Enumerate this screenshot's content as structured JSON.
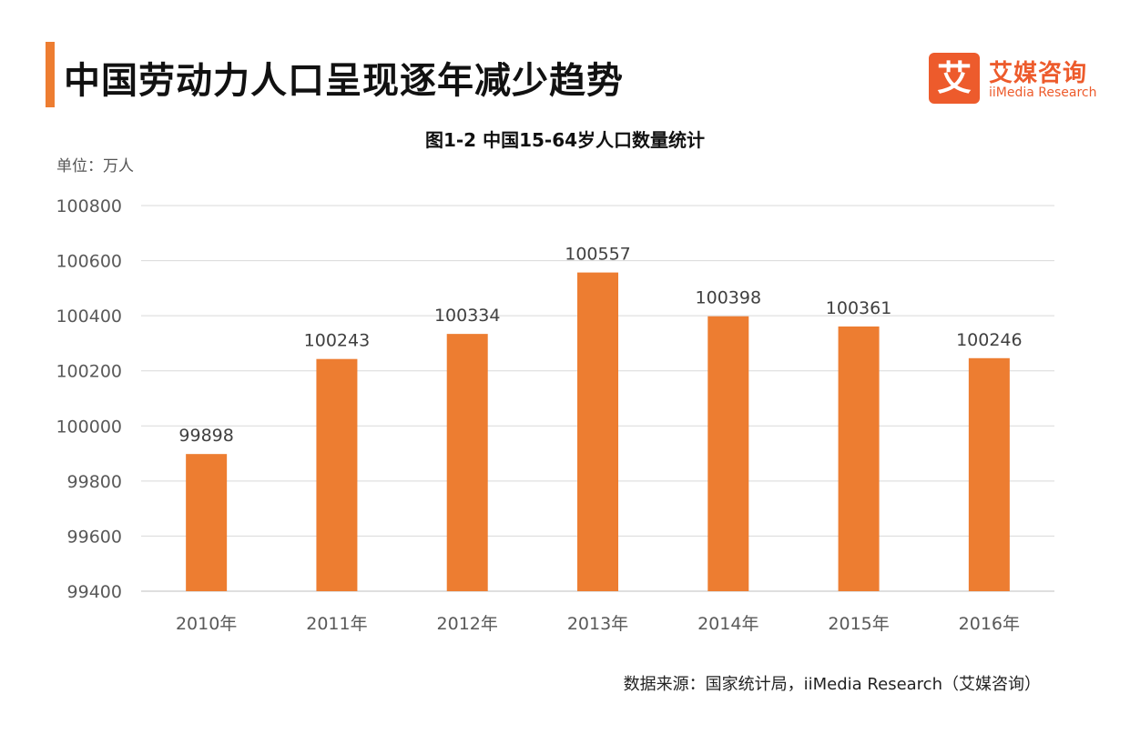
{
  "header": {
    "title": "中国劳动力人口呈现逐年减少趋势",
    "accent_color": "#ED7D31"
  },
  "logo": {
    "mark": "艾",
    "name_cn": "艾媒咨询",
    "name_en": "iiMedia Research",
    "color": "#ED5B2C"
  },
  "chart_title": "图1-2 中国15-64岁人口数量统计",
  "unit_label": "单位：万人",
  "source": "数据来源：国家统计局，iiMedia Research（艾媒咨询）",
  "chart_data": {
    "type": "bar",
    "title": "图1-2 中国15-64岁人口数量统计",
    "xlabel": "",
    "ylabel": "单位：万人",
    "categories": [
      "2010年",
      "2011年",
      "2012年",
      "2013年",
      "2014年",
      "2015年",
      "2016年"
    ],
    "values": [
      99898,
      100243,
      100334,
      100557,
      100398,
      100361,
      100246
    ],
    "data_labels": [
      "99898",
      "100243",
      "100334",
      "100557",
      "100398",
      "100361",
      "100246"
    ],
    "ylim": [
      99400,
      100800
    ],
    "yticks": [
      99400,
      99600,
      99800,
      100000,
      100200,
      100400,
      100600,
      100800
    ],
    "grid": true,
    "legend": "none",
    "bar_color": "#ED7D31"
  }
}
